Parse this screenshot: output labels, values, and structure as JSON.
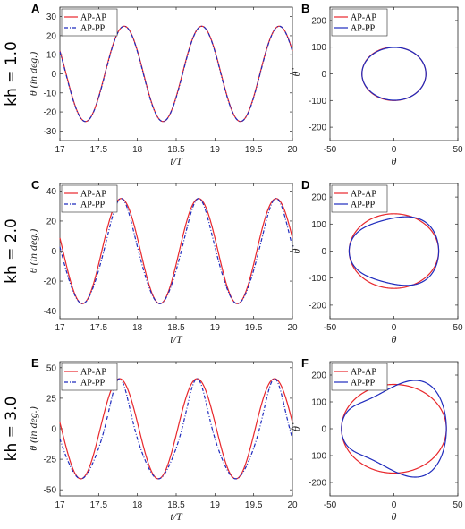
{
  "rows": [
    {
      "label": "kh = 1.0",
      "left_letter": "A",
      "right_letter": "B"
    },
    {
      "label": "kh = 2.0",
      "left_letter": "C",
      "right_letter": "D"
    },
    {
      "label": "kh = 3.0",
      "left_letter": "E",
      "right_letter": "F"
    }
  ],
  "colors": {
    "ap_ap": "#e8262b",
    "ap_pp": "#1f2bbd"
  },
  "chart_data": [
    {
      "id": "A",
      "type": "line",
      "xlabel": "t/T",
      "ylabel": "θ (in deg.)",
      "xlim": [
        17,
        20
      ],
      "ylim": [
        -35,
        35
      ],
      "xticks": [
        17,
        17.5,
        18,
        18.5,
        19,
        19.5,
        20
      ],
      "yticks": [
        -30,
        -20,
        -10,
        0,
        10,
        20,
        30
      ],
      "legend": {
        "position": "top-left",
        "entries": [
          "AP-AP",
          "AP-PP"
        ]
      },
      "series": [
        {
          "name": "AP-AP",
          "style": "solid",
          "amplitude": 25,
          "period": 1.0,
          "peak_t": [
            17.83,
            18.83,
            19.83
          ],
          "trough_t": [
            17.33,
            18.33,
            19.33
          ]
        },
        {
          "name": "AP-PP",
          "style": "dashdot",
          "amplitude": 25,
          "period": 1.0,
          "peak_t": [
            17.83,
            18.83,
            19.83
          ],
          "trough_t": [
            17.33,
            18.33,
            19.33
          ]
        }
      ]
    },
    {
      "id": "B",
      "type": "line",
      "xlabel": "θ",
      "ylabel": "θ̇",
      "xlim": [
        -50,
        50
      ],
      "ylim": [
        -250,
        250
      ],
      "xticks": [
        -50,
        0,
        50
      ],
      "yticks": [
        -200,
        -100,
        0,
        100,
        200
      ],
      "legend": {
        "position": "top-left",
        "entries": [
          "AP-AP",
          "AP-PP"
        ]
      },
      "series": [
        {
          "name": "AP-AP",
          "style": "solid",
          "theta_amplitude": 25,
          "rate_amplitude": 100
        },
        {
          "name": "AP-PP",
          "style": "solid",
          "theta_amplitude": 25,
          "rate_amplitude": 100
        }
      ]
    },
    {
      "id": "C",
      "type": "line",
      "xlabel": "t/T",
      "ylabel": "θ (in deg.)",
      "xlim": [
        17,
        20
      ],
      "ylim": [
        -45,
        45
      ],
      "xticks": [
        17,
        17.5,
        18,
        18.5,
        19,
        19.5,
        20
      ],
      "yticks": [
        -40,
        -20,
        0,
        20,
        40
      ],
      "legend": {
        "position": "top-left",
        "entries": [
          "AP-AP",
          "AP-PP"
        ]
      },
      "series": [
        {
          "name": "AP-AP",
          "style": "solid",
          "amplitude": 35,
          "period": 1.0,
          "peak_t": [
            17.79,
            18.79,
            19.79
          ],
          "trough_t": [
            17.29,
            18.29,
            19.29
          ]
        },
        {
          "name": "AP-PP",
          "style": "dashdot",
          "amplitude": 35,
          "period": 1.0,
          "peak_t": [
            17.79,
            18.79,
            19.79
          ],
          "trough_t": [
            17.29,
            18.29,
            19.29
          ]
        }
      ]
    },
    {
      "id": "D",
      "type": "line",
      "xlabel": "θ",
      "ylabel": "θ̇",
      "xlim": [
        -50,
        50
      ],
      "ylim": [
        -250,
        250
      ],
      "xticks": [
        -50,
        0,
        50
      ],
      "yticks": [
        -200,
        -100,
        0,
        100,
        200
      ],
      "legend": {
        "position": "top-left",
        "entries": [
          "AP-AP",
          "AP-PP"
        ]
      },
      "series": [
        {
          "name": "AP-AP",
          "style": "solid",
          "theta_amplitude": 35,
          "rate_amplitude": 138
        },
        {
          "name": "AP-PP",
          "style": "solid",
          "theta_amplitude": 35,
          "rate_amplitude": 148
        }
      ]
    },
    {
      "id": "E",
      "type": "line",
      "xlabel": "t/T",
      "ylabel": "θ (in deg.)",
      "xlim": [
        17,
        20
      ],
      "ylim": [
        -55,
        55
      ],
      "xticks": [
        17,
        17.5,
        18,
        18.5,
        19,
        19.5,
        20
      ],
      "yticks": [
        -50,
        -25,
        0,
        25,
        50
      ],
      "legend": {
        "position": "top-left",
        "entries": [
          "AP-AP",
          "AP-PP"
        ]
      },
      "series": [
        {
          "name": "AP-AP",
          "style": "solid",
          "amplitude": 41,
          "period": 1.0,
          "peak_t": [
            17.77,
            18.77,
            19.77
          ],
          "trough_t": [
            17.27,
            18.27,
            19.27
          ]
        },
        {
          "name": "AP-PP",
          "style": "dashdot",
          "amplitude": 41,
          "period": 1.0,
          "peak_t": [
            17.77,
            18.77,
            19.77
          ],
          "trough_t": [
            17.27,
            18.27,
            19.27
          ]
        }
      ]
    },
    {
      "id": "F",
      "type": "line",
      "xlabel": "θ",
      "ylabel": "θ̇",
      "xlim": [
        -50,
        50
      ],
      "ylim": [
        -250,
        250
      ],
      "xticks": [
        -50,
        0,
        50
      ],
      "yticks": [
        -200,
        -100,
        0,
        100,
        200
      ],
      "legend": {
        "position": "top-left",
        "entries": [
          "AP-AP",
          "AP-PP"
        ]
      },
      "series": [
        {
          "name": "AP-AP",
          "style": "solid",
          "theta_amplitude": 41,
          "rate_amplitude": 165
        },
        {
          "name": "AP-PP",
          "style": "solid",
          "theta_amplitude": 41,
          "rate_amplitude": 208
        }
      ]
    }
  ]
}
